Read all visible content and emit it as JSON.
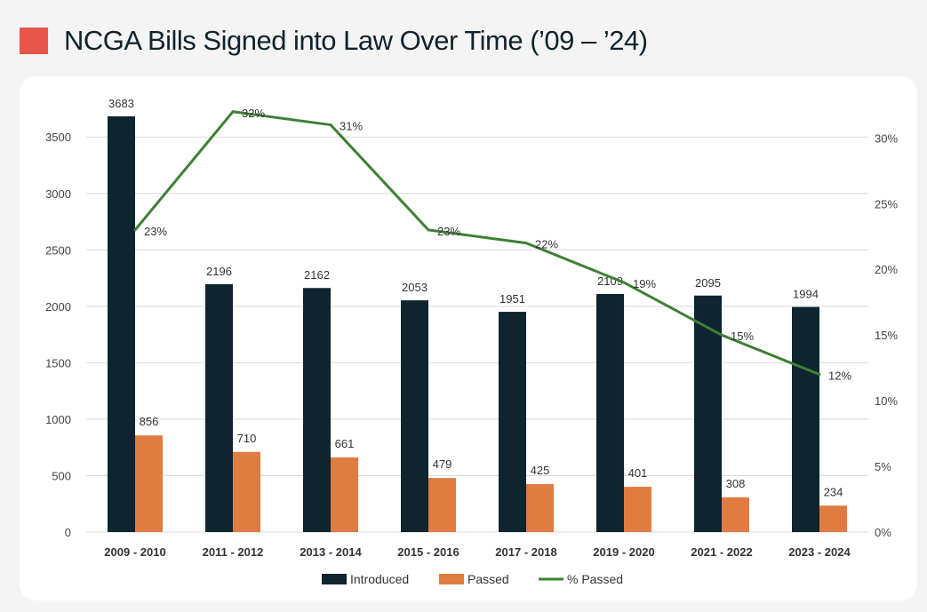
{
  "title": "NCGA Bills Signed into Law Over Time (’09 – ’24)",
  "colors": {
    "title_accent": "#e8554a",
    "introduced": "#0e2530",
    "passed": "#e07c42",
    "percent": "#3f7f36",
    "grid": "#d9d9d9"
  },
  "chart_data": {
    "type": "bar",
    "categories": [
      "2009 - 2010",
      "2011 - 2012",
      "2013 - 2014",
      "2015 - 2016",
      "2017 - 2018",
      "2019 - 2020",
      "2021 - 2022",
      "2023 - 2024"
    ],
    "series": [
      {
        "name": "Introduced",
        "type": "bar",
        "values": [
          3683,
          2196,
          2162,
          2053,
          1951,
          2109,
          2095,
          1994
        ]
      },
      {
        "name": "Passed",
        "type": "bar",
        "values": [
          856,
          710,
          661,
          479,
          425,
          401,
          308,
          234
        ]
      },
      {
        "name": "% Passed",
        "type": "line",
        "axis": "right",
        "values": [
          23,
          32,
          31,
          23,
          22,
          19,
          15,
          12
        ]
      }
    ],
    "left_axis": {
      "ticks": [
        0,
        500,
        1000,
        1500,
        2000,
        2500,
        3000,
        3500
      ],
      "range": [
        0,
        3840
      ]
    },
    "right_axis": {
      "ticks": [
        "0%",
        "5%",
        "10%",
        "15%",
        "20%",
        "25%",
        "30%"
      ],
      "range": [
        0,
        33
      ]
    },
    "grid": true,
    "legend": "bottom"
  }
}
